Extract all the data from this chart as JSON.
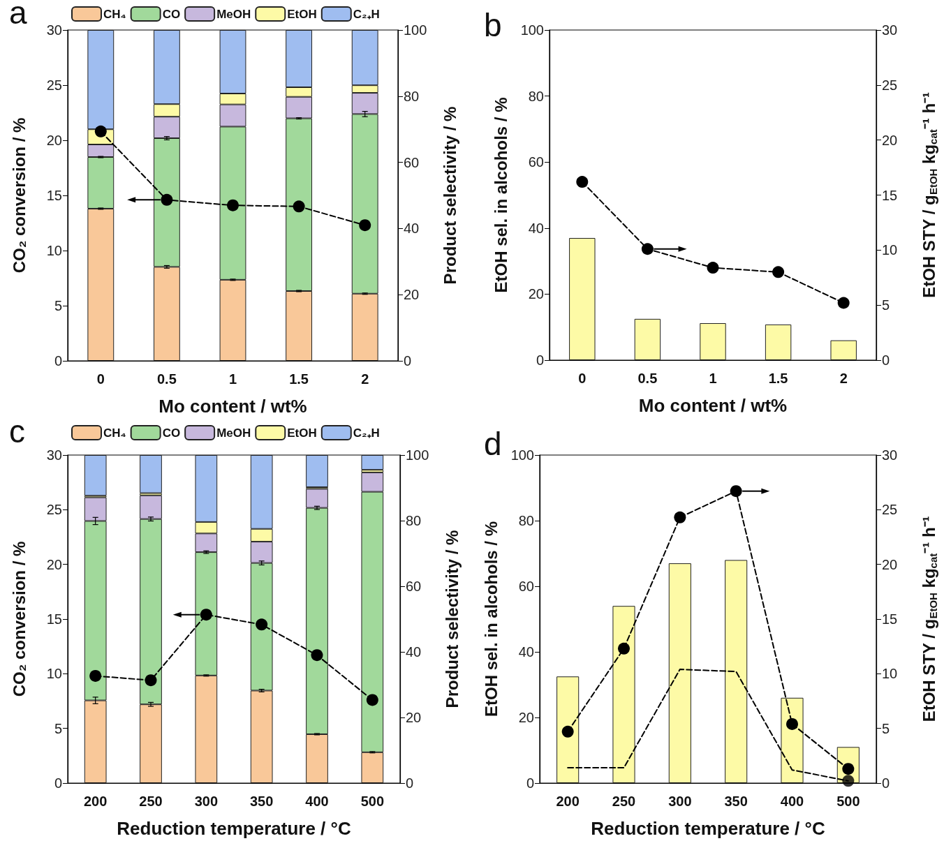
{
  "chart_data": [
    {
      "type": "bar",
      "title": "a",
      "categories": [
        "0",
        "0.5",
        "1",
        "1.5",
        "2"
      ],
      "xlabel": "Mo content / wt%",
      "ylabel": "CO₂ conversion / %",
      "y2label": "Product selectivity / %",
      "ylim": [
        0,
        30
      ],
      "yticks": [
        0,
        5,
        10,
        15,
        20,
        25,
        30
      ],
      "y2lim": [
        0,
        100
      ],
      "y2ticks": [
        0,
        20,
        40,
        60,
        80,
        100
      ],
      "stacked": true,
      "legend": "top",
      "series": [
        {
          "name": "CH₄",
          "color": "#f9c899",
          "axis": "y2",
          "values": [
            46.0,
            28.4,
            24.5,
            21.1,
            20.3
          ],
          "errors": [
            0.2,
            0.4,
            0.2,
            0.2,
            0.2
          ]
        },
        {
          "name": "CO",
          "color": "#a1d99b",
          "axis": "y2",
          "values": [
            15.6,
            38.9,
            46.3,
            52.2,
            54.3
          ],
          "errors": [
            0.2,
            0.5,
            null,
            0.2,
            0.8
          ]
        },
        {
          "name": "MeOH",
          "color": "#c7b8dd",
          "axis": "y2",
          "values": [
            3.8,
            6.5,
            6.7,
            6.5,
            6.4
          ]
        },
        {
          "name": "EtOH",
          "color": "#fdfaa6",
          "axis": "y2",
          "values": [
            4.6,
            3.8,
            3.3,
            2.9,
            2.3
          ]
        },
        {
          "name": "C₂₊H",
          "color": "#9fbdf0",
          "axis": "y2",
          "values": [
            30.0,
            22.4,
            19.2,
            17.3,
            16.7
          ]
        },
        {
          "type": "line",
          "color": "#000000",
          "axis": "y",
          "marker": "circle",
          "line_style": "dashed",
          "values": [
            20.8,
            14.6,
            14.1,
            14.0,
            12.3
          ]
        }
      ]
    },
    {
      "type": "bar",
      "title": "b",
      "categories": [
        "0",
        "0.5",
        "1",
        "1.5",
        "2"
      ],
      "xlabel": "Mo content / wt%",
      "ylabel": "EtOH sel. in alcohols / %",
      "y2label": "EtOH STY / g$_{EtOH}$ kg$_{cat}$⁻¹ h⁻¹",
      "ylim": [
        0,
        100
      ],
      "yticks": [
        0,
        20,
        40,
        60,
        80,
        100
      ],
      "y2lim": [
        0,
        30
      ],
      "y2ticks": [
        0,
        5,
        10,
        15,
        20,
        25,
        30
      ],
      "series": [
        {
          "color": "#fdfaa6",
          "axis": "y",
          "values": [
            37.0,
            12.5,
            11.2,
            10.8,
            6.0
          ]
        },
        {
          "type": "line",
          "color": "#000000",
          "axis": "y2",
          "marker": "circle",
          "line_style": "dashed",
          "values": [
            16.2,
            10.1,
            8.4,
            8.0,
            5.2
          ]
        }
      ]
    },
    {
      "type": "bar",
      "title": "c",
      "categories": [
        "200",
        "250",
        "300",
        "350",
        "400",
        "500"
      ],
      "xlabel": "Reduction temperature / °C",
      "ylabel": "CO₂ conversion / %",
      "y2label": "Product selectivity / %",
      "ylim": [
        0,
        30
      ],
      "yticks": [
        0,
        5,
        10,
        15,
        20,
        25,
        30
      ],
      "y2lim": [
        0,
        100
      ],
      "y2ticks": [
        0,
        20,
        40,
        60,
        80,
        100
      ],
      "stacked": true,
      "legend": "top",
      "series": [
        {
          "name": "CH₄",
          "color": "#f9c899",
          "axis": "y2",
          "values": [
            25.2,
            24.0,
            32.8,
            28.2,
            14.9,
            9.4
          ],
          "errors": [
            1.0,
            0.6,
            0.2,
            0.4,
            0.2,
            0.2
          ]
        },
        {
          "name": "CO",
          "color": "#a1d99b",
          "axis": "y2",
          "values": [
            54.7,
            56.5,
            37.6,
            38.9,
            69.0,
            79.4
          ],
          "errors": [
            1.1,
            0.6,
            0.4,
            0.6,
            0.5,
            null
          ]
        },
        {
          "name": "MeOH",
          "color": "#c7b8dd",
          "axis": "y2",
          "values": [
            7.2,
            7.2,
            5.7,
            6.5,
            5.8,
            5.9
          ]
        },
        {
          "name": "EtOH",
          "color": "#fdfaa6",
          "axis": "y2",
          "values": [
            0.5,
            0.7,
            3.5,
            3.9,
            0.5,
            0.8
          ]
        },
        {
          "name": "C₂₊H",
          "color": "#9fbdf0",
          "axis": "y2",
          "values": [
            12.4,
            11.6,
            20.4,
            22.5,
            9.8,
            4.5
          ]
        },
        {
          "type": "line",
          "color": "#000000",
          "axis": "y",
          "marker": "circle",
          "line_style": "dashed",
          "values": [
            9.8,
            9.4,
            15.4,
            14.5,
            11.7,
            7.6
          ]
        }
      ]
    },
    {
      "type": "bar",
      "title": "d",
      "categories": [
        "200",
        "250",
        "300",
        "350",
        "400",
        "500"
      ],
      "xlabel": "Reduction temperature / °C",
      "ylabel": "EtOH sel. in alcohols / %",
      "y2label": "EtOH STY / g$_{EtOH}$ kg$_{cat}$⁻¹ h⁻¹",
      "ylim": [
        0,
        100
      ],
      "yticks": [
        0,
        20,
        40,
        60,
        80,
        100
      ],
      "y2lim": [
        0,
        30
      ],
      "y2ticks": [
        0,
        5,
        10,
        15,
        20,
        25,
        30
      ],
      "series": [
        {
          "color": "#fdfaa6",
          "axis": "y",
          "values": [
            32.5,
            54.0,
            67.0,
            68.0,
            26.0,
            11.0
          ]
        },
        {
          "type": "line",
          "color": "#000000",
          "axis": "y2",
          "marker": "circle",
          "line_style": "dashed",
          "values": [
            4.7,
            12.3,
            24.3,
            26.7,
            5.4,
            1.3
          ]
        },
        {
          "type": "line",
          "color": "#000000",
          "axis": "y2",
          "marker": "none",
          "line_style": "dashed",
          "values": [
            1.4,
            1.4,
            10.4,
            10.2,
            1.2,
            0.2
          ]
        },
        {
          "type": "scatter",
          "color": "#000000",
          "axis": "y2",
          "marker": "circle",
          "x": [
            "500"
          ],
          "values": [
            0.2
          ]
        }
      ]
    }
  ]
}
